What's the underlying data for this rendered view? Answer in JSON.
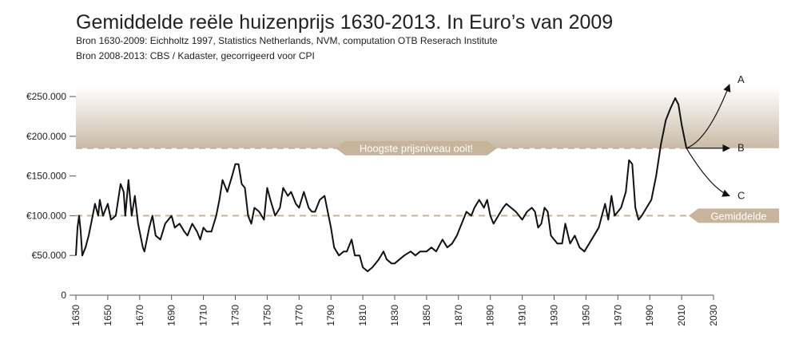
{
  "chart_data": {
    "type": "line",
    "title": "Gemiddelde reële huizenprijs 1630-2013. In Euro’s van 2009",
    "subtitle": [
      "Bron 1630-2009: Eichholtz 1997, Statistics Netherlands, NVM, computation OTB Reserach Institute",
      "Bron 2008-2013: CBS / Kadaster, gecorrigeerd voor CPI"
    ],
    "color": "#111111",
    "xlim": [
      1630,
      2030
    ],
    "xticks": [
      1630,
      1650,
      1670,
      1690,
      1710,
      1730,
      1750,
      1770,
      1790,
      1810,
      1830,
      1850,
      1870,
      1890,
      1910,
      1930,
      1950,
      1970,
      1990,
      2010,
      2030
    ],
    "ylim": [
      0,
      250000
    ],
    "yticks": [
      0,
      {
        "value": 50000,
        "label": "€50.000"
      },
      {
        "value": 100000,
        "label": "€100.000"
      },
      {
        "value": 150000,
        "label": "€150.000"
      },
      {
        "value": 200000,
        "label": "€200.000"
      },
      {
        "value": 250000,
        "label": "€250.000"
      }
    ],
    "x": [
      1630,
      1631,
      1632,
      1633,
      1634,
      1636,
      1638,
      1640,
      1642,
      1644,
      1645,
      1647,
      1650,
      1652,
      1655,
      1658,
      1660,
      1661,
      1663,
      1665,
      1667,
      1669,
      1672,
      1673,
      1676,
      1678,
      1680,
      1683,
      1686,
      1688,
      1690,
      1692,
      1695,
      1698,
      1700,
      1703,
      1706,
      1708,
      1710,
      1712,
      1715,
      1718,
      1720,
      1722,
      1725,
      1728,
      1730,
      1732,
      1734,
      1736,
      1738,
      1740,
      1742,
      1745,
      1748,
      1750,
      1752,
      1755,
      1758,
      1760,
      1763,
      1765,
      1768,
      1770,
      1773,
      1776,
      1778,
      1780,
      1783,
      1786,
      1790,
      1792,
      1795,
      1798,
      1800,
      1803,
      1805,
      1808,
      1810,
      1813,
      1816,
      1820,
      1823,
      1825,
      1828,
      1830,
      1833,
      1836,
      1840,
      1843,
      1846,
      1850,
      1853,
      1856,
      1860,
      1863,
      1866,
      1869,
      1872,
      1875,
      1878,
      1880,
      1883,
      1886,
      1888,
      1890,
      1892,
      1895,
      1898,
      1900,
      1903,
      1906,
      1910,
      1913,
      1916,
      1918,
      1920,
      1922,
      1924,
      1926,
      1928,
      1930,
      1932,
      1935,
      1937,
      1940,
      1943,
      1946,
      1949,
      1952,
      1955,
      1958,
      1960,
      1962,
      1964,
      1966,
      1968,
      1970,
      1972,
      1975,
      1977,
      1979,
      1981,
      1983,
      1985,
      1988,
      1991,
      1994,
      1997,
      2000,
      2003,
      2006,
      2008,
      2010,
      2013
    ],
    "values": [
      50000,
      85000,
      100000,
      80000,
      50000,
      60000,
      75000,
      95000,
      115000,
      100000,
      120000,
      100000,
      115000,
      95000,
      100000,
      140000,
      130000,
      100000,
      145000,
      100000,
      125000,
      90000,
      60000,
      55000,
      85000,
      100000,
      75000,
      70000,
      90000,
      95000,
      100000,
      85000,
      90000,
      80000,
      75000,
      90000,
      80000,
      70000,
      85000,
      80000,
      80000,
      100000,
      120000,
      145000,
      130000,
      150000,
      165000,
      165000,
      140000,
      135000,
      100000,
      90000,
      110000,
      105000,
      95000,
      135000,
      120000,
      100000,
      110000,
      135000,
      125000,
      130000,
      115000,
      110000,
      130000,
      110000,
      105000,
      105000,
      120000,
      125000,
      85000,
      60000,
      50000,
      55000,
      55000,
      70000,
      50000,
      50000,
      35000,
      30000,
      35000,
      45000,
      55000,
      45000,
      40000,
      40000,
      45000,
      50000,
      55000,
      50000,
      55000,
      55000,
      60000,
      55000,
      70000,
      60000,
      65000,
      75000,
      90000,
      105000,
      100000,
      110000,
      120000,
      110000,
      120000,
      100000,
      90000,
      100000,
      110000,
      115000,
      110000,
      105000,
      95000,
      105000,
      110000,
      105000,
      85000,
      90000,
      110000,
      105000,
      75000,
      70000,
      65000,
      65000,
      90000,
      65000,
      75000,
      60000,
      55000,
      65000,
      75000,
      85000,
      100000,
      115000,
      95000,
      125000,
      100000,
      105000,
      110000,
      130000,
      170000,
      165000,
      110000,
      95000,
      100000,
      110000,
      120000,
      150000,
      190000,
      220000,
      235000,
      248000,
      240000,
      215000,
      185000
    ],
    "reference_lines": [
      {
        "value": 185000,
        "label": "Hoogste prijsniveau ooit!"
      },
      {
        "value": 100000,
        "label": "Gemiddelde"
      }
    ],
    "scenarios": [
      {
        "name": "A",
        "x": 2040,
        "value": 265000
      },
      {
        "name": "B",
        "x": 2040,
        "value": 185000
      },
      {
        "name": "C",
        "x": 2040,
        "value": 125000
      }
    ]
  }
}
